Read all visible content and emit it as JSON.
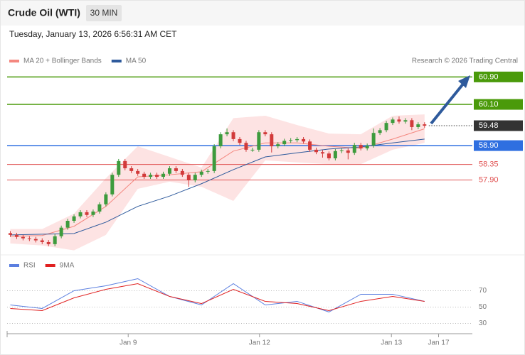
{
  "header": {
    "title": "Crude Oil (WTI)",
    "timeframe": "30 MIN",
    "timestamp": "Tuesday, January 13, 2026 6:56:31 AM CET"
  },
  "chart_data": [
    {
      "type": "candlestick",
      "credit": "Research © 2026 Trading Central",
      "xlim": [
        -0.5,
        72.5
      ],
      "ylim": [
        55.8,
        61.9
      ],
      "up_color": "#3d9b3d",
      "down_color": "#d23a3a",
      "candles": [
        [
          56.35,
          56.41,
          56.24,
          56.3
        ],
        [
          56.3,
          56.36,
          56.18,
          56.24
        ],
        [
          56.24,
          56.3,
          56.14,
          56.2
        ],
        [
          56.2,
          56.26,
          56.12,
          56.18
        ],
        [
          56.18,
          56.24,
          56.08,
          56.14
        ],
        [
          56.14,
          56.2,
          56.03,
          56.09
        ],
        [
          56.09,
          56.15,
          55.97,
          56.03
        ],
        [
          56.03,
          56.32,
          55.97,
          56.26
        ],
        [
          56.26,
          56.57,
          56.2,
          56.51
        ],
        [
          56.51,
          56.77,
          56.45,
          56.71
        ],
        [
          56.71,
          56.9,
          56.65,
          56.84
        ],
        [
          56.84,
          57.02,
          56.78,
          56.96
        ],
        [
          56.96,
          57.02,
          56.82,
          56.88
        ],
        [
          56.88,
          57.04,
          56.82,
          56.98
        ],
        [
          56.98,
          57.25,
          56.92,
          57.19
        ],
        [
          57.19,
          57.54,
          57.13,
          57.48
        ],
        [
          57.48,
          58.11,
          57.42,
          58.05
        ],
        [
          58.05,
          58.51,
          57.99,
          58.45
        ],
        [
          58.45,
          58.51,
          58.18,
          58.24
        ],
        [
          58.24,
          58.3,
          58.1,
          58.16
        ],
        [
          58.16,
          58.22,
          58.02,
          58.08
        ],
        [
          58.08,
          58.14,
          57.93,
          57.99
        ],
        [
          57.99,
          58.11,
          57.93,
          58.05
        ],
        [
          58.05,
          58.11,
          57.93,
          57.99
        ],
        [
          57.99,
          58.14,
          57.93,
          58.08
        ],
        [
          58.08,
          58.3,
          58.02,
          58.24
        ],
        [
          58.24,
          58.3,
          58.1,
          58.16
        ],
        [
          58.16,
          58.22,
          57.99,
          58.05
        ],
        [
          58.05,
          58.11,
          57.7,
          57.89
        ],
        [
          57.89,
          58.11,
          57.83,
          58.05
        ],
        [
          58.05,
          58.2,
          57.99,
          58.14
        ],
        [
          58.14,
          58.22,
          58.08,
          58.16
        ],
        [
          58.16,
          58.94,
          58.1,
          58.88
        ],
        [
          58.88,
          59.29,
          58.82,
          59.23
        ],
        [
          59.23,
          59.4,
          59.17,
          59.29
        ],
        [
          59.29,
          59.35,
          59.03,
          59.09
        ],
        [
          59.09,
          59.15,
          58.92,
          58.98
        ],
        [
          58.98,
          59.04,
          58.72,
          58.78
        ],
        [
          58.78,
          58.84,
          58.72,
          58.78
        ],
        [
          58.78,
          59.35,
          58.72,
          59.29
        ],
        [
          59.29,
          59.35,
          59.17,
          59.23
        ],
        [
          59.23,
          59.29,
          58.7,
          58.88
        ],
        [
          58.88,
          59.0,
          58.82,
          58.94
        ],
        [
          58.94,
          59.1,
          58.88,
          59.04
        ],
        [
          59.04,
          59.12,
          58.98,
          59.06
        ],
        [
          59.06,
          59.15,
          59.0,
          59.09
        ],
        [
          59.09,
          59.15,
          58.96,
          59.02
        ],
        [
          59.02,
          59.08,
          58.72,
          58.78
        ],
        [
          58.78,
          58.84,
          58.65,
          58.71
        ],
        [
          58.71,
          58.77,
          58.55,
          58.67
        ],
        [
          58.67,
          58.73,
          58.47,
          58.53
        ],
        [
          58.53,
          58.8,
          58.47,
          58.74
        ],
        [
          58.74,
          58.82,
          58.68,
          58.76
        ],
        [
          58.76,
          58.82,
          58.5,
          58.69
        ],
        [
          58.69,
          58.98,
          58.63,
          58.92
        ],
        [
          58.92,
          58.98,
          58.76,
          58.82
        ],
        [
          58.82,
          58.96,
          58.76,
          58.9
        ],
        [
          58.9,
          59.4,
          58.84,
          59.27
        ],
        [
          59.27,
          59.41,
          59.21,
          59.35
        ],
        [
          59.35,
          59.62,
          59.29,
          59.56
        ],
        [
          59.56,
          59.72,
          59.5,
          59.66
        ],
        [
          59.66,
          59.75,
          59.54,
          59.6
        ],
        [
          59.6,
          59.7,
          59.54,
          59.64
        ],
        [
          59.64,
          59.7,
          59.35,
          59.44
        ],
        [
          59.44,
          59.58,
          59.38,
          59.52
        ],
        [
          59.52,
          59.58,
          59.42,
          59.48
        ]
      ],
      "series": [
        {
          "name": "MA 20 + Bollinger Bands",
          "color": "#f4877f",
          "band_color": "#fde3e3",
          "x": [
            0,
            5,
            10,
            15,
            20,
            25,
            30,
            35,
            40,
            45,
            50,
            55,
            60,
            65
          ],
          "values": [
            56.26,
            56.28,
            56.55,
            57.13,
            57.99,
            58.05,
            58.14,
            58.74,
            58.98,
            58.98,
            58.88,
            58.82,
            59.09,
            59.39
          ],
          "upper": [
            56.47,
            56.47,
            56.92,
            57.95,
            58.88,
            58.57,
            58.26,
            59.7,
            59.77,
            59.5,
            59.25,
            59.23,
            59.77,
            59.81
          ],
          "lower": [
            56.05,
            55.99,
            55.85,
            56.3,
            57.64,
            57.85,
            57.7,
            57.29,
            58.47,
            58.41,
            58.36,
            58.36,
            58.78,
            58.98
          ]
        },
        {
          "name": "MA 50",
          "color": "#2e5a9c",
          "x": [
            0,
            5,
            10,
            15,
            20,
            25,
            30,
            35,
            40,
            45,
            50,
            55,
            60,
            65
          ],
          "values": [
            56.3,
            56.32,
            56.34,
            56.67,
            57.13,
            57.43,
            57.79,
            58.2,
            58.57,
            58.69,
            58.8,
            58.86,
            58.98,
            59.09
          ]
        }
      ],
      "levels": [
        {
          "value": 60.9,
          "label": "60.90",
          "color": "#4a9a0a",
          "tag": true,
          "style": "solid"
        },
        {
          "value": 60.1,
          "label": "60.10",
          "color": "#4a9a0a",
          "tag": true,
          "style": "solid"
        },
        {
          "value": 59.48,
          "label": "59.48",
          "color": "#333333",
          "tag": true,
          "style": "dotted"
        },
        {
          "value": 58.9,
          "label": "58.90",
          "color": "#2f6fe0",
          "tag": true,
          "style": "solid"
        },
        {
          "value": 58.35,
          "label": "58.35",
          "color": "#e05050",
          "tag": false,
          "style": "solid"
        },
        {
          "value": 57.9,
          "label": "57.90",
          "color": "#e05050",
          "tag": false,
          "style": "solid"
        }
      ]
    },
    {
      "type": "line",
      "xlim": [
        -0.5,
        72.5
      ],
      "ylim": [
        20,
        100
      ],
      "yticks": [
        30,
        50,
        70
      ],
      "grid": true,
      "xticks": [
        {
          "value": 18.5,
          "label": "Jan 9"
        },
        {
          "value": 39.1,
          "label": "Jan 12"
        },
        {
          "value": 59.8,
          "label": "Jan 13"
        },
        {
          "value": 67.2,
          "label": "Jan 17"
        }
      ],
      "series": [
        {
          "name": "RSI",
          "color": "#5b7fe0",
          "x": [
            0,
            5,
            10,
            15,
            20,
            25,
            30,
            35,
            40,
            45,
            50,
            55,
            60,
            65
          ],
          "values": [
            52.6,
            48.3,
            70,
            76.1,
            84.8,
            63,
            52.6,
            78.7,
            52.6,
            57,
            44,
            65.7,
            65.7,
            57
          ]
        },
        {
          "name": "9MA",
          "color": "#e02020",
          "x": [
            0,
            5,
            10,
            15,
            20,
            25,
            30,
            35,
            40,
            45,
            50,
            55,
            60,
            65
          ],
          "values": [
            48.3,
            45.7,
            61.3,
            71.7,
            78.7,
            63,
            54.3,
            71.7,
            57,
            54.3,
            45.7,
            57,
            63,
            57
          ]
        }
      ]
    }
  ]
}
